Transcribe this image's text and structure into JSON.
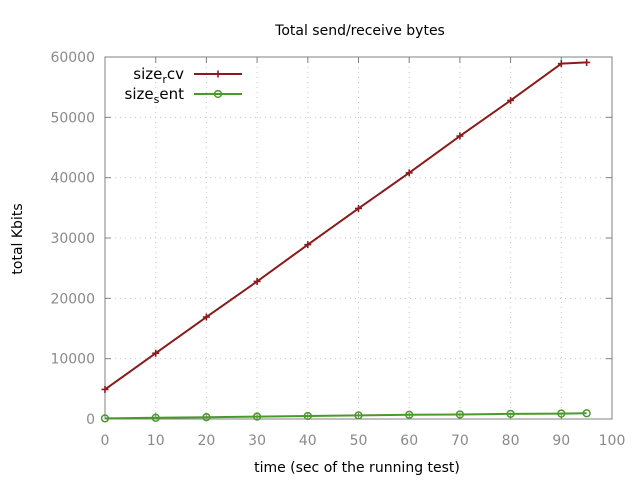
{
  "chart_data": {
    "type": "line",
    "title": "Total send/receive bytes",
    "xlabel": "time (sec of the running test)",
    "ylabel": "total Kbits",
    "xlim": [
      0,
      100
    ],
    "ylim": [
      0,
      60000
    ],
    "x_ticks": [
      0,
      10,
      20,
      30,
      40,
      50,
      60,
      70,
      80,
      90,
      100
    ],
    "y_ticks": [
      0,
      10000,
      20000,
      30000,
      40000,
      50000,
      60000
    ],
    "grid": true,
    "legend_position": "top-left",
    "series": [
      {
        "name": "size_rcv",
        "label_base": "size",
        "label_sub": "r",
        "label_tail": "cv",
        "color": "#8b1a1a",
        "marker": "plus",
        "x": [
          0,
          10,
          20,
          30,
          40,
          50,
          60,
          70,
          80,
          90,
          95
        ],
        "y": [
          4900,
          10900,
          16900,
          22800,
          28900,
          34900,
          40800,
          46900,
          52800,
          58900,
          59100
        ]
      },
      {
        "name": "size_sent",
        "label_base": "size",
        "label_sub": "s",
        "label_tail": "ent",
        "color": "#4a9a2a",
        "marker": "circle",
        "x": [
          0,
          10,
          20,
          30,
          40,
          50,
          60,
          70,
          80,
          90,
          95
        ],
        "y": [
          100,
          200,
          300,
          400,
          500,
          600,
          700,
          750,
          850,
          900,
          950
        ]
      }
    ]
  }
}
